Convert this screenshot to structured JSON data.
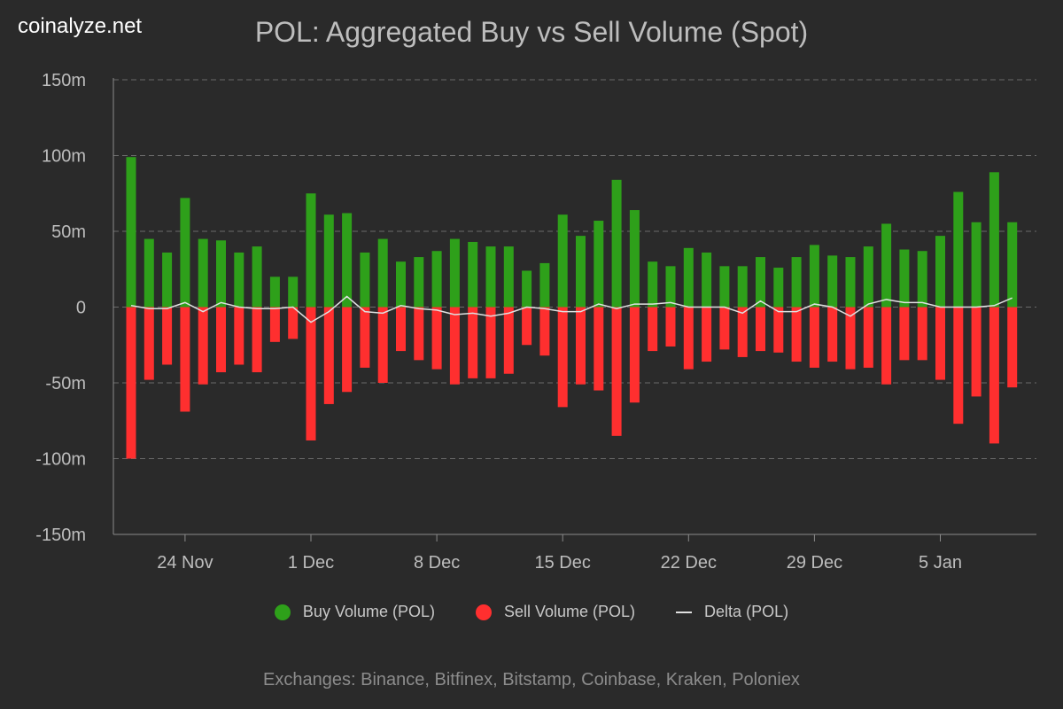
{
  "brand": "coinalyze.net",
  "colors": {
    "buy": "#2ea01a",
    "sell": "#ff2f2f",
    "delta": "#e0e0e0",
    "background": "#2a2a2a",
    "grid": "#6a6a6a"
  },
  "footer": "Exchanges: Binance, Bitfinex, Bitstamp, Coinbase, Kraken, Poloniex",
  "chart_data": {
    "type": "bar",
    "title": "POL: Aggregated Buy vs Sell Volume (Spot)",
    "ylim": [
      -150,
      150
    ],
    "yticks": [
      150,
      100,
      50,
      0,
      -50,
      -100,
      -150
    ],
    "ytick_labels": [
      "150m",
      "100m",
      "50m",
      "0",
      "-50m",
      "-100m",
      "-150m"
    ],
    "grid": true,
    "legend_position": "bottom",
    "x_start": "2024-11-21",
    "xtick_labels": [
      {
        "day": 3,
        "label": "24 Nov"
      },
      {
        "day": 10,
        "label": "1 Dec"
      },
      {
        "day": 17,
        "label": "8 Dec"
      },
      {
        "day": 24,
        "label": "15 Dec"
      },
      {
        "day": 31,
        "label": "22 Dec"
      },
      {
        "day": 38,
        "label": "29 Dec"
      },
      {
        "day": 45,
        "label": "5 Jan"
      }
    ],
    "series": [
      {
        "name": "Buy Volume (POL)",
        "type": "bar",
        "values": [
          99,
          45,
          36,
          72,
          45,
          44,
          36,
          40,
          20,
          20,
          75,
          61,
          62,
          36,
          45,
          30,
          33,
          37,
          45,
          43,
          40,
          40,
          24,
          29,
          61,
          47,
          57,
          84,
          64,
          30,
          27,
          39,
          36,
          27,
          27,
          33,
          26,
          33,
          41,
          34,
          33,
          40,
          55,
          38,
          37,
          47,
          76,
          56,
          89,
          56
        ]
      },
      {
        "name": "Sell Volume (POL)",
        "type": "bar",
        "values": [
          -100,
          -48,
          -38,
          -69,
          -51,
          -43,
          -38,
          -43,
          -23,
          -21,
          -88,
          -64,
          -56,
          -40,
          -50,
          -29,
          -35,
          -41,
          -51,
          -47,
          -47,
          -44,
          -25,
          -32,
          -66,
          -51,
          -55,
          -85,
          -63,
          -29,
          -26,
          -41,
          -36,
          -28,
          -33,
          -29,
          -30,
          -36,
          -40,
          -36,
          -41,
          -40,
          -51,
          -35,
          -35,
          -48,
          -77,
          -59,
          -90,
          -53
        ]
      },
      {
        "name": "Delta (POL)",
        "type": "line",
        "values": [
          1,
          -1,
          -1,
          3,
          -3,
          3,
          0,
          -1,
          -1,
          0,
          -10,
          -3,
          7,
          -3,
          -4,
          1,
          -1,
          -2,
          -5,
          -4,
          -6,
          -4,
          0,
          -1,
          -3,
          -3,
          2,
          -1,
          2,
          2,
          3,
          0,
          0,
          0,
          -4,
          4,
          -3,
          -3,
          2,
          0,
          -6,
          2,
          5,
          3,
          3,
          0,
          0,
          0,
          1,
          6
        ]
      }
    ]
  }
}
